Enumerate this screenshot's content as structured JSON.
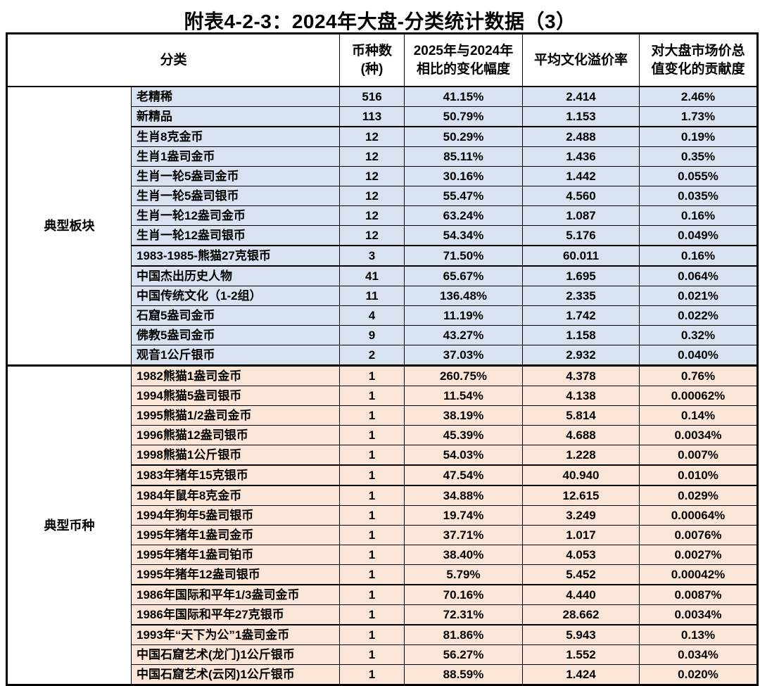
{
  "title": "附表4-2-3：2024年大盘-分类统计数据（3）",
  "table": {
    "headers": {
      "category": "分类",
      "count": "币种数\n(种)",
      "change": "2025年与2024年\n相比的变化幅度",
      "premium": "平均文化溢价率",
      "contribution": "对大盘市场价总\n值变化的贡献度"
    },
    "colors": {
      "section1_row_bg": "#d9e2f0",
      "section2_row_bg": "#fbe5d6",
      "border": "#000000",
      "header_bg": "#ffffff"
    },
    "sections": [
      {
        "label": "典型板块",
        "row_bg": "#d9e2f0",
        "rows": [
          {
            "name": "老精稀",
            "count": "516",
            "change": "41.15%",
            "premium": "2.414",
            "contribution": "2.46%",
            "sep_after": false
          },
          {
            "name": "新精品",
            "count": "113",
            "change": "50.79%",
            "premium": "1.153",
            "contribution": "1.73%",
            "sep_after": true
          },
          {
            "name": "生肖8克金币",
            "count": "12",
            "change": "50.29%",
            "premium": "2.488",
            "contribution": "0.19%",
            "sep_after": false
          },
          {
            "name": "生肖1盎司金币",
            "count": "12",
            "change": "85.11%",
            "premium": "1.436",
            "contribution": "0.35%",
            "sep_after": false
          },
          {
            "name": "生肖一轮5盎司金币",
            "count": "12",
            "change": "30.16%",
            "premium": "1.442",
            "contribution": "0.055%",
            "sep_after": false
          },
          {
            "name": "生肖一轮5盎司银币",
            "count": "12",
            "change": "55.47%",
            "premium": "4.560",
            "contribution": "0.035%",
            "sep_after": false
          },
          {
            "name": "生肖一轮12盎司金币",
            "count": "12",
            "change": "63.24%",
            "premium": "1.087",
            "contribution": "0.16%",
            "sep_after": false
          },
          {
            "name": "生肖一轮12盎司银币",
            "count": "12",
            "change": "54.34%",
            "premium": "5.176",
            "contribution": "0.049%",
            "sep_after": true
          },
          {
            "name": "1983-1985-熊猫27克银币",
            "count": "3",
            "change": "71.50%",
            "premium": "60.011",
            "contribution": "0.16%",
            "sep_after": true
          },
          {
            "name": "中国杰出历史人物",
            "count": "41",
            "change": "65.67%",
            "premium": "1.695",
            "contribution": "0.064%",
            "sep_after": false
          },
          {
            "name": "中国传统文化（1-2组）",
            "count": "11",
            "change": "136.48%",
            "premium": "2.335",
            "contribution": "0.021%",
            "sep_after": false
          },
          {
            "name": "石窟5盎司金币",
            "count": "4",
            "change": "11.19%",
            "premium": "1.742",
            "contribution": "0.022%",
            "sep_after": false
          },
          {
            "name": "佛教5盎司金币",
            "count": "9",
            "change": "43.27%",
            "premium": "1.158",
            "contribution": "0.32%",
            "sep_after": false
          },
          {
            "name": "观音1公斤银币",
            "count": "2",
            "change": "37.03%",
            "premium": "2.932",
            "contribution": "0.040%",
            "sep_after": false
          }
        ]
      },
      {
        "label": "典型币种",
        "row_bg": "#fbe5d6",
        "rows": [
          {
            "name": "1982熊猫1盎司金币",
            "count": "1",
            "change": "260.75%",
            "premium": "4.378",
            "contribution": "0.76%",
            "sep_after": false
          },
          {
            "name": "1994熊猫5盎司银币",
            "count": "1",
            "change": "11.54%",
            "premium": "4.138",
            "contribution": "0.00062%",
            "sep_after": false
          },
          {
            "name": "1995熊猫1/2盎司金币",
            "count": "1",
            "change": "38.19%",
            "premium": "5.814",
            "contribution": "0.14%",
            "sep_after": false
          },
          {
            "name": "1996熊猫12盎司银币",
            "count": "1",
            "change": "45.39%",
            "premium": "4.688",
            "contribution": "0.0034%",
            "sep_after": false
          },
          {
            "name": "1998熊猫1公斤银币",
            "count": "1",
            "change": "54.03%",
            "premium": "1.228",
            "contribution": "0.007%",
            "sep_after": true
          },
          {
            "name": "1983年猪年15克银币",
            "count": "1",
            "change": "47.54%",
            "premium": "40.940",
            "contribution": "0.010%",
            "sep_after": true
          },
          {
            "name": "1984年鼠年8克金币",
            "count": "1",
            "change": "34.88%",
            "premium": "12.615",
            "contribution": "0.029%",
            "sep_after": false
          },
          {
            "name": "1994年狗年5盎司银币",
            "count": "1",
            "change": "19.74%",
            "premium": "3.249",
            "contribution": "0.00064%",
            "sep_after": false
          },
          {
            "name": "1995年猪年1盎司金币",
            "count": "1",
            "change": "37.71%",
            "premium": "1.017",
            "contribution": "0.0076%",
            "sep_after": false
          },
          {
            "name": "1995年猪年1盎司铂币",
            "count": "1",
            "change": "38.40%",
            "premium": "4.053",
            "contribution": "0.0027%",
            "sep_after": false
          },
          {
            "name": "1995年猪年12盎司银币",
            "count": "1",
            "change": "5.79%",
            "premium": "5.452",
            "contribution": "0.00042%",
            "sep_after": true
          },
          {
            "name": "1986年国际和平年1/3盎司金币",
            "count": "1",
            "change": "70.16%",
            "premium": "4.440",
            "contribution": "0.0087%",
            "sep_after": false
          },
          {
            "name": "1986年国际和平年27克银币",
            "count": "1",
            "change": "72.31%",
            "premium": "28.662",
            "contribution": "0.0034%",
            "sep_after": true
          },
          {
            "name": "1993年“天下为公”1盎司金币",
            "count": "1",
            "change": "81.86%",
            "premium": "5.943",
            "contribution": "0.13%",
            "sep_after": false
          },
          {
            "name": "中国石窟艺术(龙门)1公斤银币",
            "count": "1",
            "change": "56.27%",
            "premium": "1.552",
            "contribution": "0.034%",
            "sep_after": false
          },
          {
            "name": "中国石窟艺术(云冈)1公斤银币",
            "count": "1",
            "change": "88.59%",
            "premium": "1.424",
            "contribution": "0.020%",
            "sep_after": false
          }
        ]
      }
    ]
  }
}
